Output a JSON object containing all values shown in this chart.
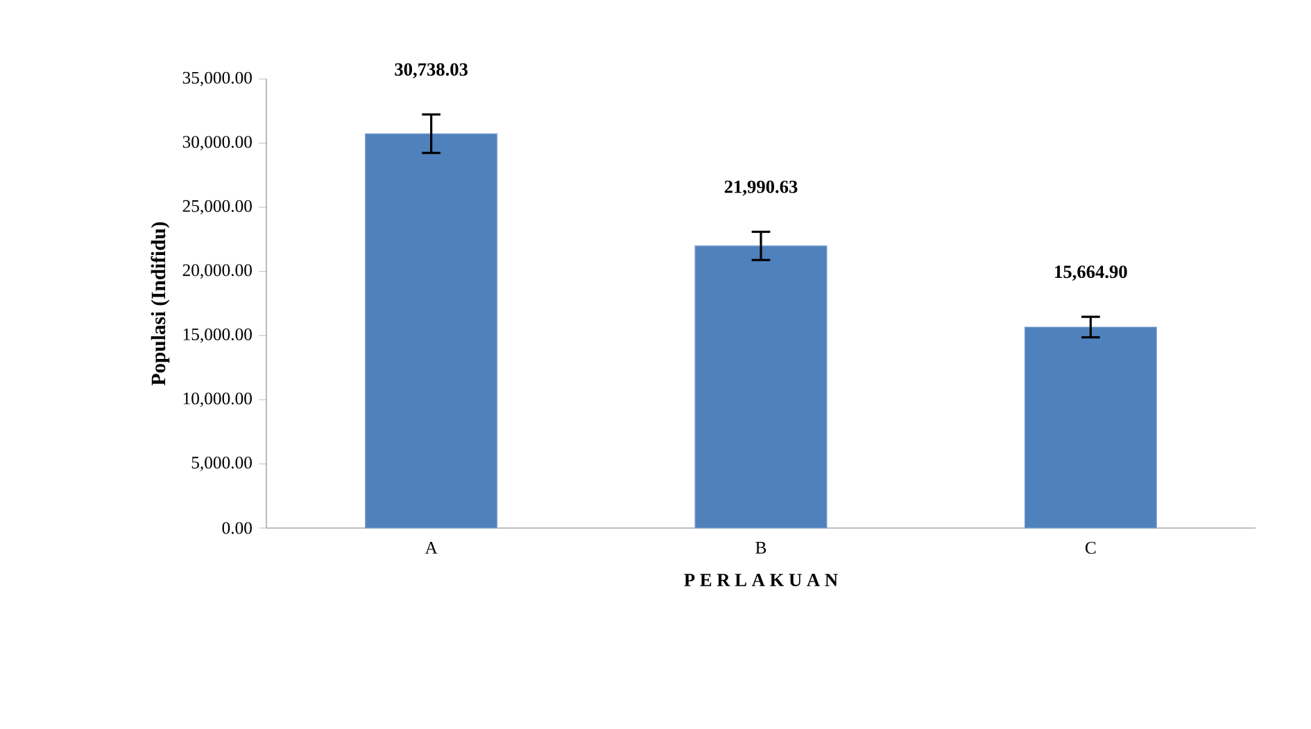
{
  "chart_data": {
    "type": "bar",
    "xlabel": "P E R L A K U A N",
    "ylabel": "Populasi (Indifidu)",
    "categories": [
      "A",
      "B",
      "C"
    ],
    "series": [
      {
        "color": "#4f81bd",
        "values": [
          30738.03,
          21990.63,
          15664.9
        ],
        "errors": [
          1500,
          1100,
          800
        ],
        "value_labels": [
          "30,738.03",
          "21,990.63",
          "15,664.90"
        ]
      }
    ],
    "ylim": [
      0,
      35000
    ],
    "yticks": [
      {
        "value": 0,
        "label": "0.00"
      },
      {
        "value": 5000,
        "label": "5,000.00"
      },
      {
        "value": 10000,
        "label": "10,000.00"
      },
      {
        "value": 15000,
        "label": "15,000.00"
      },
      {
        "value": 20000,
        "label": "20,000.00"
      },
      {
        "value": 25000,
        "label": "25,000.00"
      },
      {
        "value": 30000,
        "label": "30,000.00"
      },
      {
        "value": 35000,
        "label": "35,000.00"
      }
    ],
    "grid": false
  }
}
